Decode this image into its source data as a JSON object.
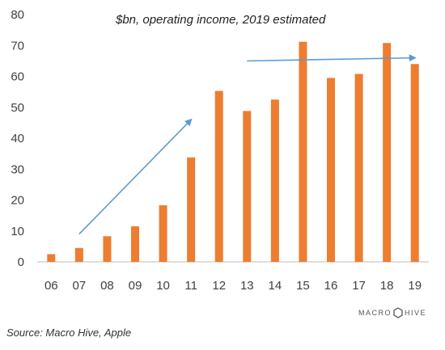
{
  "chart_data": {
    "type": "bar",
    "title": "$bn, operating income, 2019 estimated",
    "categories": [
      "06",
      "07",
      "08",
      "09",
      "10",
      "11",
      "12",
      "13",
      "14",
      "15",
      "16",
      "17",
      "18",
      "19"
    ],
    "values": [
      2.5,
      4.5,
      8.3,
      11.5,
      18.3,
      33.8,
      55.3,
      48.8,
      52.5,
      71.2,
      59.5,
      60.8,
      70.8,
      64.0
    ],
    "ylim": [
      0,
      80
    ],
    "yticks": [
      0,
      10,
      20,
      30,
      40,
      50,
      60,
      70,
      80
    ],
    "xlabel": "",
    "ylabel": "",
    "grid": false,
    "legend": "none",
    "bar_color": "#ED7D31",
    "annotations": [
      {
        "kind": "arrow",
        "color": "#5B9BD5",
        "from": {
          "x": "07",
          "y": 9
        },
        "to": {
          "x": "11",
          "y": 46
        }
      },
      {
        "kind": "arrow",
        "color": "#5B9BD5",
        "from": {
          "x": "13",
          "y": 65
        },
        "to": {
          "x": "19",
          "y": 66
        }
      }
    ]
  },
  "source": "Source: Macro Hive, Apple",
  "logo": {
    "text_left": "MACRO",
    "text_right": "HIVE",
    "icon": "hexagon-icon",
    "color": "#555555"
  }
}
